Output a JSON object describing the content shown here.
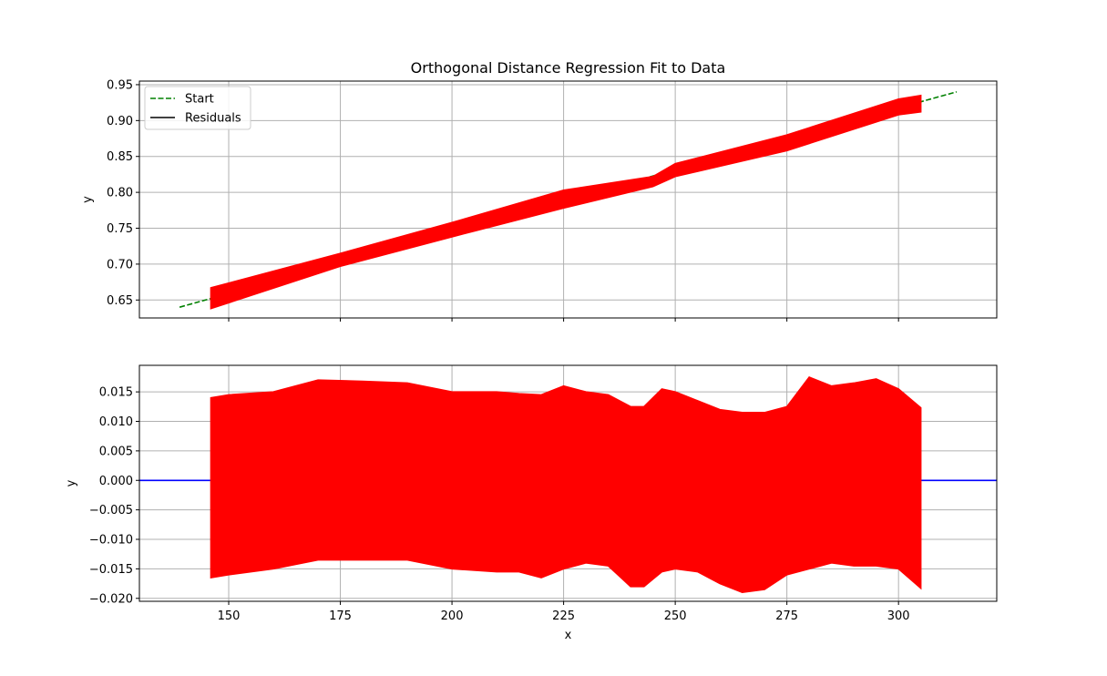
{
  "chart_data": [
    {
      "type": "line",
      "title": "Orthogonal Distance Regression Fit to Data",
      "xlabel": "",
      "ylabel": "y",
      "xlim": [
        130,
        322
      ],
      "ylim": [
        0.625,
        0.955
      ],
      "xticks": [
        150,
        175,
        200,
        225,
        250,
        275,
        300
      ],
      "xtick_labels_visible": false,
      "yticks": [
        0.65,
        0.7,
        0.75,
        0.8,
        0.85,
        0.9,
        0.95
      ],
      "ytick_labels": [
        "0.65",
        "0.70",
        "0.75",
        "0.80",
        "0.85",
        "0.90",
        "0.95"
      ],
      "grid": true,
      "legend": {
        "placement": "top-left",
        "entries": [
          {
            "label": "Start",
            "color": "#008000",
            "style": "dashed"
          },
          {
            "label": "Residuals",
            "color": "#000000",
            "style": "solid"
          }
        ]
      },
      "series": [
        {
          "name": "Start",
          "color": "#008000",
          "style": "dashed",
          "x": [
            139,
            313
          ],
          "y": [
            0.64,
            0.94
          ]
        },
        {
          "color": "#ff0000",
          "style": "band",
          "x": [
            146,
            175,
            200,
            225,
            245,
            250,
            275,
            300,
            305
          ],
          "lower": [
            0.638,
            0.697,
            0.738,
            0.778,
            0.808,
            0.822,
            0.858,
            0.908,
            0.912
          ],
          "upper": [
            0.667,
            0.715,
            0.758,
            0.803,
            0.822,
            0.84,
            0.88,
            0.93,
            0.935
          ]
        }
      ]
    },
    {
      "type": "line",
      "title": "",
      "xlabel": "x",
      "ylabel": "y",
      "xlim": [
        130,
        322
      ],
      "ylim": [
        -0.0205,
        0.0195
      ],
      "xticks": [
        150,
        175,
        200,
        225,
        250,
        275,
        300
      ],
      "xtick_labels": [
        "150",
        "175",
        "200",
        "225",
        "250",
        "275",
        "300"
      ],
      "yticks": [
        -0.02,
        -0.015,
        -0.01,
        -0.005,
        0.0,
        0.005,
        0.01,
        0.015
      ],
      "ytick_labels": [
        "−0.020",
        "−0.015",
        "−0.010",
        "−0.005",
        "0.000",
        "0.005",
        "0.010",
        "0.015"
      ],
      "grid": true,
      "series": [
        {
          "color": "#0000ff",
          "style": "solid",
          "x": [
            130,
            322
          ],
          "y": [
            0,
            0
          ]
        },
        {
          "color": "#ff0000",
          "style": "band",
          "x": [
            146,
            150,
            160,
            170,
            180,
            190,
            200,
            210,
            215,
            220,
            225,
            230,
            235,
            240,
            243,
            247,
            250,
            255,
            260,
            265,
            270,
            275,
            280,
            285,
            290,
            295,
            300,
            305
          ],
          "upper": [
            0.014,
            0.0145,
            0.015,
            0.017,
            0.0168,
            0.0165,
            0.015,
            0.015,
            0.0147,
            0.0145,
            0.016,
            0.015,
            0.0145,
            0.0125,
            0.0125,
            0.0155,
            0.015,
            0.0135,
            0.012,
            0.0115,
            0.0115,
            0.0125,
            0.0175,
            0.016,
            0.0165,
            0.0172,
            0.0155,
            0.0123
          ],
          "lower": [
            -0.0165,
            -0.016,
            -0.015,
            -0.0135,
            -0.0135,
            -0.0135,
            -0.015,
            -0.0155,
            -0.0155,
            -0.0165,
            -0.015,
            -0.014,
            -0.0145,
            -0.018,
            -0.018,
            -0.0155,
            -0.015,
            -0.0155,
            -0.0175,
            -0.019,
            -0.0185,
            -0.016,
            -0.015,
            -0.014,
            -0.0145,
            -0.0145,
            -0.015,
            -0.0183
          ]
        }
      ]
    }
  ]
}
